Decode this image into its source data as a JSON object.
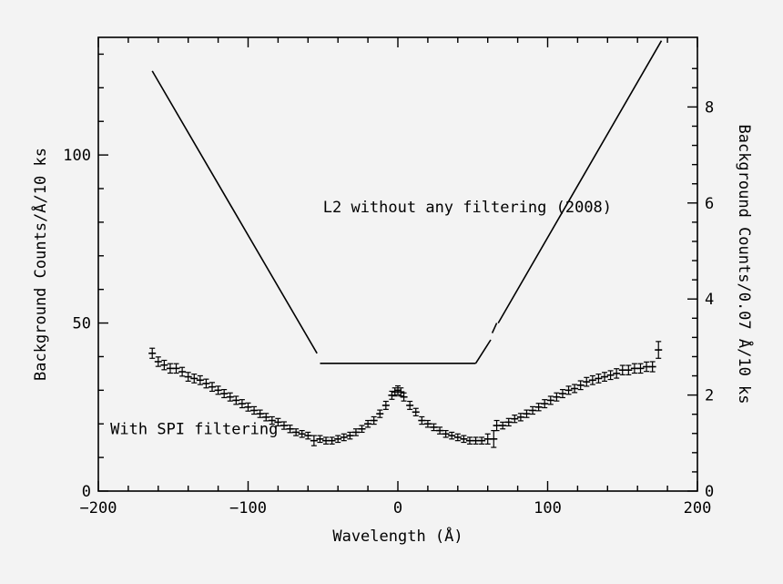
{
  "chart_data": {
    "type": "line",
    "title": "",
    "xlabel": "Wavelength (Å)",
    "ylabel": "Background Counts/Å/10 ks",
    "y2label": "Background Counts/0.07 Å/10 ks",
    "xlim": [
      -200,
      200
    ],
    "ylim": [
      0,
      135
    ],
    "y2lim": [
      0,
      9.45
    ],
    "x_ticks": [
      -200,
      -100,
      0,
      100,
      200
    ],
    "x_tick_labels": [
      "−200",
      "−100",
      "0",
      "100",
      "200"
    ],
    "y_ticks": [
      0,
      50,
      100
    ],
    "y_tick_labels": [
      "0",
      "50",
      "100"
    ],
    "y2_ticks": [
      0,
      2,
      4,
      6,
      8
    ],
    "y2_tick_labels": [
      "0",
      "2",
      "4",
      "6",
      "8"
    ],
    "grid": false,
    "annotations": [
      {
        "text": "L2 without any filtering (2008)",
        "x": -50,
        "y": 83
      },
      {
        "text": "With SPI filtering",
        "x": -192,
        "y": 17
      }
    ],
    "series": [
      {
        "name": "L2 without any filtering (2008)",
        "style": "line",
        "segments": [
          [
            [
              -164,
              125
            ],
            [
              -54,
              41
            ]
          ],
          [
            [
              -52,
              38
            ],
            [
              52,
              38
            ]
          ],
          [
            [
              52,
              38
            ],
            [
              62,
              45
            ]
          ],
          [
            [
              63,
              47
            ],
            [
              66,
              50
            ]
          ],
          [
            [
              67,
              50
            ],
            [
              176,
              134
            ]
          ]
        ]
      },
      {
        "name": "With SPI filtering",
        "style": "errorbar",
        "x": [
          -164,
          -160,
          -156,
          -152,
          -148,
          -144,
          -140,
          -136,
          -132,
          -128,
          -124,
          -120,
          -116,
          -112,
          -108,
          -104,
          -100,
          -96,
          -92,
          -88,
          -84,
          -80,
          -76,
          -72,
          -68,
          -64,
          -60,
          -56,
          -52,
          -48,
          -44,
          -40,
          -36,
          -32,
          -28,
          -24,
          -20,
          -16,
          -12,
          -8,
          -4,
          -2,
          0,
          2,
          4,
          8,
          12,
          16,
          20,
          24,
          28,
          32,
          36,
          40,
          44,
          48,
          52,
          56,
          60,
          64,
          66,
          70,
          74,
          78,
          82,
          86,
          90,
          94,
          98,
          102,
          106,
          110,
          114,
          118,
          122,
          126,
          130,
          134,
          138,
          142,
          146,
          150,
          154,
          158,
          162,
          166,
          170,
          174
        ],
        "values": [
          41,
          38.5,
          37.5,
          36.5,
          36.5,
          35.5,
          34,
          33.5,
          33,
          32,
          31,
          30,
          29,
          28,
          27,
          26,
          25,
          24,
          23,
          22,
          21,
          20.5,
          19.5,
          18.5,
          17.5,
          17,
          16.5,
          15,
          15.5,
          15,
          15,
          15.5,
          16,
          16.5,
          17.5,
          18.5,
          20,
          21,
          23,
          25.5,
          28.5,
          29.5,
          30,
          29.5,
          28,
          25.5,
          23.5,
          21,
          20,
          19,
          18,
          17,
          16.5,
          16,
          15.5,
          15,
          15,
          15,
          15.5,
          15.5,
          19.5,
          19.5,
          20.5,
          21.5,
          22,
          23,
          24,
          25,
          26,
          27,
          28,
          29,
          30,
          30.5,
          31.5,
          32.5,
          33,
          33.5,
          34,
          34.5,
          35,
          36,
          36,
          36.5,
          36.5,
          37,
          37,
          42
        ],
        "errors": [
          1.5,
          1.4,
          1.4,
          1.4,
          1.4,
          1.3,
          1.3,
          1.3,
          1.3,
          1.3,
          1.3,
          1.2,
          1.2,
          1.2,
          1.2,
          1.2,
          1.2,
          1.1,
          1.1,
          1.1,
          1.1,
          1.1,
          1.1,
          1.1,
          1.0,
          1.0,
          1.0,
          1.5,
          1.0,
          1.0,
          1.0,
          1.0,
          1.0,
          1.0,
          1.0,
          1.0,
          1.0,
          1.1,
          1.1,
          1.2,
          1.2,
          1.2,
          1.3,
          1.2,
          1.2,
          1.2,
          1.1,
          1.1,
          1.0,
          1.0,
          1.0,
          1.0,
          1.0,
          1.0,
          1.0,
          1.0,
          1.0,
          1.0,
          1.5,
          2.5,
          1.5,
          1.0,
          1.1,
          1.1,
          1.1,
          1.1,
          1.1,
          1.1,
          1.2,
          1.2,
          1.2,
          1.2,
          1.2,
          1.2,
          1.3,
          1.3,
          1.3,
          1.3,
          1.3,
          1.3,
          1.4,
          1.4,
          1.4,
          1.4,
          1.4,
          1.4,
          1.5,
          2.5
        ]
      }
    ]
  }
}
